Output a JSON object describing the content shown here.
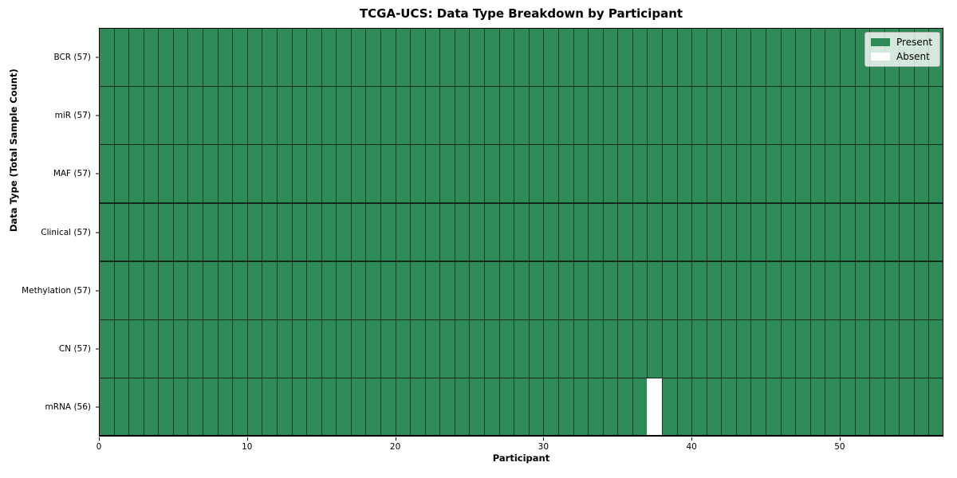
{
  "chart_data": {
    "type": "heatmap",
    "title": "TCGA-UCS: Data Type Breakdown by Participant",
    "xlabel": "Participant",
    "ylabel": "Data Type (Total Sample Count)",
    "x_range": [
      0,
      57
    ],
    "n_participants": 57,
    "x_ticks": [
      0,
      10,
      20,
      30,
      40,
      50
    ],
    "grid": "cell-borders",
    "rows": [
      {
        "label": "BCR (57)",
        "data_type": "BCR",
        "total_samples": 57,
        "absent_participants": []
      },
      {
        "label": "miR (57)",
        "data_type": "miR",
        "total_samples": 57,
        "absent_participants": []
      },
      {
        "label": "MAF (57)",
        "data_type": "MAF",
        "total_samples": 57,
        "absent_participants": []
      },
      {
        "label": "Clinical (57)",
        "data_type": "Clinical",
        "total_samples": 57,
        "absent_participants": []
      },
      {
        "label": "Methylation (57)",
        "data_type": "Methylation",
        "total_samples": 57,
        "absent_participants": []
      },
      {
        "label": "CN (57)",
        "data_type": "CN",
        "total_samples": 57,
        "absent_participants": []
      },
      {
        "label": "mRNA (56)",
        "data_type": "mRNA",
        "total_samples": 56,
        "absent_participants": [
          37
        ]
      }
    ],
    "legend": {
      "position": "upper right",
      "items": [
        {
          "label": "Present",
          "color": "#2e8b57"
        },
        {
          "label": "Absent",
          "color": "#ffffff"
        }
      ]
    },
    "colors": {
      "present": "#2e8b57",
      "absent": "#ffffff",
      "background": "#ffffff",
      "text": "#000000"
    }
  }
}
